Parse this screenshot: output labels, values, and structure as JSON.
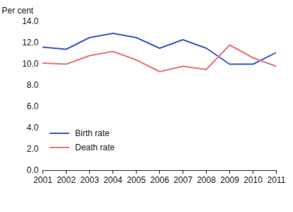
{
  "chart_data": {
    "type": "line",
    "y_label": "Per cent",
    "x": [
      2001,
      2002,
      2003,
      2004,
      2005,
      2006,
      2007,
      2008,
      2009,
      2010,
      2011
    ],
    "series": [
      {
        "name": "Birth rate",
        "color": "#3a5fc8",
        "values": [
          11.6,
          11.4,
          12.5,
          12.9,
          12.5,
          11.5,
          12.3,
          11.5,
          10.0,
          10.0,
          11.1
        ]
      },
      {
        "name": "Death rate",
        "color": "#e8777a",
        "values": [
          10.1,
          10.0,
          10.8,
          11.2,
          10.4,
          9.3,
          9.8,
          9.5,
          11.8,
          10.6,
          9.8
        ]
      }
    ],
    "xlim": [
      2001,
      2011
    ],
    "xticks": [
      2001,
      2002,
      2003,
      2004,
      2005,
      2006,
      2007,
      2008,
      2009,
      2010,
      2011
    ],
    "ylim": [
      0,
      14
    ],
    "yticks": [
      {
        "value": 0,
        "label": "0.0"
      },
      {
        "value": 2,
        "label": "2.0"
      },
      {
        "value": 4,
        "label": "4.0"
      },
      {
        "value": 6,
        "label": "6.0"
      },
      {
        "value": 8,
        "label": "8.0"
      },
      {
        "value": 10,
        "label": "10.0"
      },
      {
        "value": 12,
        "label": "12.0"
      },
      {
        "value": 14,
        "label": "14.0"
      }
    ],
    "grid": false,
    "legend": "lower left"
  }
}
